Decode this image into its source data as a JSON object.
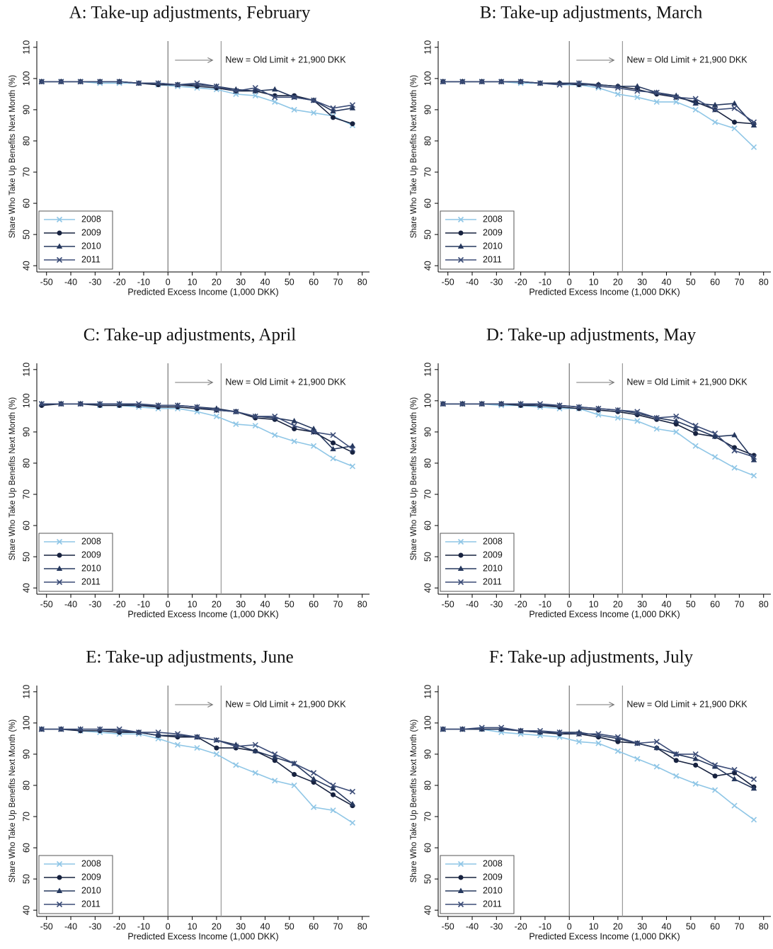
{
  "chart_data": [
    {
      "type": "line",
      "title": "A: Take-up adjustments, February",
      "x_label": "Predicted Excess Income (1,000 DKK)",
      "y_label": "Share Who Take Up Benefits Next Month (%)",
      "annotation": "New = Old Limit + 21,900 DKK",
      "reference_lines": [
        0,
        21.9
      ],
      "legend": "lower left",
      "x": [
        -52,
        -44,
        -36,
        -28,
        -20,
        -12,
        -4,
        4,
        12,
        20,
        28,
        36,
        44,
        52,
        60,
        68,
        76
      ],
      "series": [
        {
          "name": "2008",
          "color": "#8fc6e6",
          "marker": "x",
          "values": [
            99,
            99,
            99,
            98.5,
            98.5,
            98.5,
            98,
            97.5,
            97,
            96.5,
            95,
            94.5,
            92.5,
            90,
            89,
            88,
            85
          ]
        },
        {
          "name": "2009",
          "color": "#17223f",
          "marker": "circle",
          "values": [
            99,
            99,
            99,
            99,
            99,
            98.5,
            98,
            98,
            97.5,
            97,
            96,
            96,
            94.5,
            94.5,
            93,
            87.5,
            85.5
          ]
        },
        {
          "name": "2010",
          "color": "#26385e",
          "marker": "triangle",
          "values": [
            99,
            99,
            99,
            99,
            99,
            98.5,
            98.5,
            98,
            98,
            97.5,
            96.5,
            96,
            96.5,
            94,
            93,
            89.5,
            90.5
          ]
        },
        {
          "name": "2011",
          "color": "#3b4c77",
          "marker": "x",
          "values": [
            99,
            99,
            99,
            99,
            99,
            98.5,
            98.5,
            98,
            98.5,
            97.5,
            96,
            97,
            94,
            94,
            93,
            90.5,
            91.5
          ]
        }
      ],
      "xlim": [
        -54,
        83
      ],
      "ylim": [
        38,
        112
      ],
      "xticks": [
        -50,
        -40,
        -30,
        -20,
        -10,
        0,
        10,
        20,
        30,
        40,
        50,
        60,
        70,
        80
      ],
      "yticks": [
        40,
        50,
        60,
        70,
        80,
        90,
        100,
        110
      ]
    },
    {
      "type": "line",
      "title": "B: Take-up adjustments, March",
      "x_label": "Predicted Excess Income (1,000 DKK)",
      "y_label": "Share Who Take Up Benefits Next Month (%)",
      "annotation": "New = Old Limit + 21,900 DKK",
      "reference_lines": [
        0,
        21.9
      ],
      "legend": "lower left",
      "x": [
        -52,
        -44,
        -36,
        -28,
        -20,
        -12,
        -4,
        4,
        12,
        20,
        28,
        36,
        44,
        52,
        60,
        68,
        76
      ],
      "series": [
        {
          "name": "2008",
          "color": "#8fc6e6",
          "marker": "x",
          "values": [
            99,
            99,
            99,
            99,
            98.5,
            98.5,
            98,
            98,
            97,
            95,
            94,
            92.5,
            92.5,
            90,
            86,
            84,
            78
          ]
        },
        {
          "name": "2009",
          "color": "#17223f",
          "marker": "circle",
          "values": [
            99,
            99,
            99,
            99,
            99,
            98.5,
            98.5,
            98,
            98,
            97.5,
            96.5,
            95,
            94,
            92.5,
            90,
            86,
            85.5
          ]
        },
        {
          "name": "2010",
          "color": "#26385e",
          "marker": "triangle",
          "values": [
            99,
            99,
            99,
            99,
            99,
            98.5,
            98.5,
            98.5,
            98,
            97.5,
            97.5,
            95.5,
            94.5,
            92,
            91.5,
            92,
            85
          ]
        },
        {
          "name": "2011",
          "color": "#3b4c77",
          "marker": "x",
          "values": [
            99,
            99,
            99,
            99,
            99,
            98.5,
            98,
            98.5,
            97.5,
            97,
            96,
            95.5,
            94,
            93.5,
            90,
            90.5,
            86
          ]
        }
      ],
      "xlim": [
        -54,
        83
      ],
      "ylim": [
        38,
        112
      ],
      "xticks": [
        -50,
        -40,
        -30,
        -20,
        -10,
        0,
        10,
        20,
        30,
        40,
        50,
        60,
        70,
        80
      ],
      "yticks": [
        40,
        50,
        60,
        70,
        80,
        90,
        100,
        110
      ]
    },
    {
      "type": "line",
      "title": "C: Take-up adjustments, April",
      "x_label": "Predicted Excess Income (1,000 DKK)",
      "y_label": "Share Who Take Up Benefits Next Month (%)",
      "annotation": "New = Old Limit + 21,900 DKK",
      "reference_lines": [
        0,
        21.9
      ],
      "legend": "lower left",
      "x": [
        -52,
        -44,
        -36,
        -28,
        -20,
        -12,
        -4,
        4,
        12,
        20,
        28,
        36,
        44,
        52,
        60,
        68,
        76
      ],
      "series": [
        {
          "name": "2008",
          "color": "#8fc6e6",
          "marker": "x",
          "values": [
            99,
            99,
            99,
            98.5,
            98.5,
            98,
            97.5,
            97.5,
            96.5,
            95,
            92.5,
            92,
            89,
            87,
            85.5,
            81.5,
            79
          ]
        },
        {
          "name": "2009",
          "color": "#17223f",
          "marker": "circle",
          "values": [
            98.5,
            99,
            99,
            98.5,
            98.5,
            98.5,
            98,
            98,
            97.5,
            97,
            96.5,
            94.5,
            94,
            91,
            90,
            86.5,
            83.5
          ]
        },
        {
          "name": "2010",
          "color": "#26385e",
          "marker": "triangle",
          "values": [
            99,
            99,
            99,
            99,
            99,
            98.5,
            98.5,
            98.5,
            98,
            97.5,
            96.5,
            95,
            94.5,
            93.5,
            91,
            84.5,
            85.5
          ]
        },
        {
          "name": "2011",
          "color": "#3b4c77",
          "marker": "x",
          "values": [
            99,
            99,
            99,
            99,
            99,
            99,
            98.5,
            98.5,
            98,
            97,
            96.5,
            95,
            95,
            92,
            90,
            89,
            84.5
          ]
        }
      ],
      "xlim": [
        -54,
        83
      ],
      "ylim": [
        38,
        112
      ],
      "xticks": [
        -50,
        -40,
        -30,
        -20,
        -10,
        0,
        10,
        20,
        30,
        40,
        50,
        60,
        70,
        80
      ],
      "yticks": [
        40,
        50,
        60,
        70,
        80,
        90,
        100,
        110
      ]
    },
    {
      "type": "line",
      "title": "D: Take-up adjustments, May",
      "x_label": "Predicted Excess Income (1,000 DKK)",
      "y_label": "Share Who Take Up Benefits Next Month (%)",
      "annotation": "New = Old Limit + 21,900 DKK",
      "reference_lines": [
        0,
        21.9
      ],
      "legend": "lower left",
      "x": [
        -52,
        -44,
        -36,
        -28,
        -20,
        -12,
        -4,
        4,
        12,
        20,
        28,
        36,
        44,
        52,
        60,
        68,
        76
      ],
      "series": [
        {
          "name": "2008",
          "color": "#8fc6e6",
          "marker": "x",
          "values": [
            99,
            99,
            99,
            98.5,
            98.5,
            98,
            97.5,
            97.5,
            95.5,
            94.5,
            93.5,
            91,
            90,
            85.5,
            82,
            78.5,
            76
          ]
        },
        {
          "name": "2009",
          "color": "#17223f",
          "marker": "circle",
          "values": [
            99,
            99,
            99,
            99,
            98.5,
            98.5,
            98,
            97.5,
            97,
            96.5,
            95.5,
            94,
            92.5,
            89.5,
            88.5,
            85,
            82.5
          ]
        },
        {
          "name": "2010",
          "color": "#26385e",
          "marker": "triangle",
          "values": [
            99,
            99,
            99,
            99,
            99,
            98.5,
            98.5,
            98,
            97.5,
            97,
            96,
            94.5,
            93.5,
            91,
            88.5,
            89,
            81
          ]
        },
        {
          "name": "2011",
          "color": "#3b4c77",
          "marker": "x",
          "values": [
            99,
            99,
            99,
            99,
            99,
            99,
            98.5,
            98,
            97.5,
            97,
            96.5,
            94.5,
            95,
            92,
            89.5,
            84,
            82
          ]
        }
      ],
      "xlim": [
        -54,
        83
      ],
      "ylim": [
        38,
        112
      ],
      "xticks": [
        -50,
        -40,
        -30,
        -20,
        -10,
        0,
        10,
        20,
        30,
        40,
        50,
        60,
        70,
        80
      ],
      "yticks": [
        40,
        50,
        60,
        70,
        80,
        90,
        100,
        110
      ]
    },
    {
      "type": "line",
      "title": "E: Take-up adjustments, June",
      "x_label": "Predicted Excess Income (1,000 DKK)",
      "y_label": "Share Who Take Up Benefits Next Month (%)",
      "annotation": "New = Old Limit + 21,900 DKK",
      "reference_lines": [
        0,
        21.9
      ],
      "legend": "lower left",
      "x": [
        -52,
        -44,
        -36,
        -28,
        -20,
        -12,
        -4,
        4,
        12,
        20,
        28,
        36,
        44,
        52,
        60,
        68,
        76
      ],
      "series": [
        {
          "name": "2008",
          "color": "#8fc6e6",
          "marker": "x",
          "values": [
            98,
            98,
            97.5,
            97,
            96.5,
            96.5,
            95,
            93,
            92,
            90,
            86.5,
            84,
            81.5,
            80,
            73,
            72,
            68
          ]
        },
        {
          "name": "2009",
          "color": "#17223f",
          "marker": "circle",
          "values": [
            98,
            98,
            97.5,
            97.5,
            97,
            97,
            96,
            95.5,
            95.5,
            92,
            92,
            91,
            88,
            83.5,
            81,
            77,
            73.5
          ]
        },
        {
          "name": "2010",
          "color": "#26385e",
          "marker": "triangle",
          "values": [
            98,
            98,
            98,
            98,
            97.5,
            97,
            96,
            96,
            95.5,
            94.5,
            93,
            91,
            89,
            87,
            82,
            79,
            74
          ]
        },
        {
          "name": "2011",
          "color": "#3b4c77",
          "marker": "x",
          "values": [
            98,
            98,
            98,
            98,
            98,
            97,
            97,
            96.5,
            95.5,
            94.5,
            92.5,
            93,
            90,
            87,
            84,
            80,
            78
          ]
        }
      ],
      "xlim": [
        -54,
        83
      ],
      "ylim": [
        38,
        112
      ],
      "xticks": [
        -50,
        -40,
        -30,
        -20,
        -10,
        0,
        10,
        20,
        30,
        40,
        50,
        60,
        70,
        80
      ],
      "yticks": [
        40,
        50,
        60,
        70,
        80,
        90,
        100,
        110
      ]
    },
    {
      "type": "line",
      "title": "F: Take-up adjustments, July",
      "x_label": "Predicted Excess Income (1,000 DKK)",
      "y_label": "Share Who Take Up Benefits Next Month (%)",
      "annotation": "New = Old Limit + 21,900 DKK",
      "reference_lines": [
        0,
        21.9
      ],
      "legend": "lower left",
      "x": [
        -52,
        -44,
        -36,
        -28,
        -20,
        -12,
        -4,
        4,
        12,
        20,
        28,
        36,
        44,
        52,
        60,
        68,
        76
      ],
      "series": [
        {
          "name": "2008",
          "color": "#8fc6e6",
          "marker": "x",
          "values": [
            98,
            98,
            98,
            97,
            96.5,
            96,
            95.5,
            94,
            93.5,
            91,
            88.5,
            86,
            83,
            80.5,
            78.5,
            73.5,
            69
          ]
        },
        {
          "name": "2009",
          "color": "#17223f",
          "marker": "circle",
          "values": [
            98,
            98,
            98,
            98,
            97.5,
            97,
            96.5,
            96.5,
            95.5,
            94,
            93.5,
            92,
            88,
            86.5,
            83,
            84,
            79.5
          ]
        },
        {
          "name": "2010",
          "color": "#26385e",
          "marker": "triangle",
          "values": [
            98,
            98,
            98,
            98,
            97.5,
            97,
            97,
            97,
            96,
            95,
            93.5,
            92,
            90,
            88.5,
            86,
            82,
            79
          ]
        },
        {
          "name": "2011",
          "color": "#3b4c77",
          "marker": "x",
          "values": [
            98,
            98,
            98.5,
            98.5,
            97.5,
            97.5,
            97,
            96.5,
            96.5,
            95.5,
            93.5,
            94,
            90,
            90,
            86.5,
            85,
            82
          ]
        }
      ],
      "xlim": [
        -54,
        83
      ],
      "ylim": [
        38,
        112
      ],
      "xticks": [
        -50,
        -40,
        -30,
        -20,
        -10,
        0,
        10,
        20,
        30,
        40,
        50,
        60,
        70,
        80
      ],
      "yticks": [
        40,
        50,
        60,
        70,
        80,
        90,
        100,
        110
      ]
    }
  ]
}
